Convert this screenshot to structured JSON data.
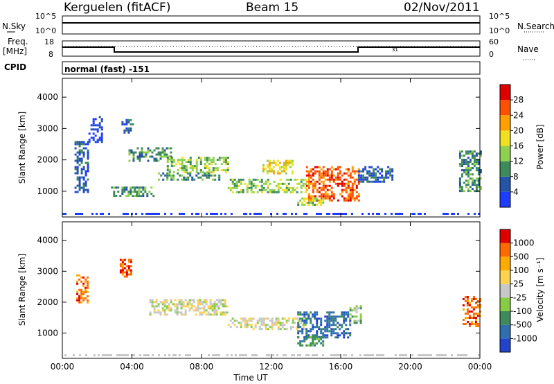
{
  "header": {
    "station": "Kerguelen (fitACF)",
    "beam": "Beam 15",
    "date": "02/Nov/2011"
  },
  "cpid_text": "normal (fast) -151",
  "status_panels": {
    "noise": {
      "left_label": "N.Sky",
      "right_label": "N.Search",
      "left_ticks": [
        "10^5",
        "10^0"
      ],
      "right_ticks": [
        "10^5",
        "10^0"
      ]
    },
    "freq": {
      "left_label_line1": "Freq.",
      "left_label_line2": "[MHz]",
      "right_label": "Nave",
      "left_ticks": [
        "18",
        "8"
      ],
      "right_ticks": [
        "60",
        "0"
      ],
      "tiny_mark": "31"
    },
    "cpid_label": "CPID"
  },
  "chart_data": [
    {
      "type": "heatmap",
      "panel": "power",
      "ylabel": "Slant Range [km]",
      "xlabel": "",
      "xlim_hours": [
        0,
        24
      ],
      "ylim_km": [
        180,
        4600
      ],
      "yticks": [
        "1000",
        "2000",
        "3000",
        "4000"
      ],
      "colorbar": {
        "label": "Power [dB]",
        "ticks": [
          "4",
          "8",
          "12",
          "16",
          "20",
          "24",
          "28"
        ],
        "colors": [
          "#1e3cff",
          "#2453a8",
          "#3d8a5a",
          "#8fd14f",
          "#f0e020",
          "#ffa000",
          "#ff5000",
          "#e00000"
        ]
      },
      "echo_regions": [
        {
          "t": [
            0.7,
            1.5
          ],
          "r": [
            1000,
            2600
          ],
          "level": 1
        },
        {
          "t": [
            1.5,
            2.3
          ],
          "r": [
            2600,
            3400
          ],
          "level": 0
        },
        {
          "t": [
            3.4,
            4.0
          ],
          "r": [
            2900,
            3300
          ],
          "level": 1
        },
        {
          "t": [
            3.8,
            6.2
          ],
          "r": [
            2000,
            2400
          ],
          "level": 2
        },
        {
          "t": [
            6.0,
            9.5
          ],
          "r": [
            1600,
            2100
          ],
          "level": 3
        },
        {
          "t": [
            2.8,
            5.3
          ],
          "r": [
            850,
            1150
          ],
          "level": 2
        },
        {
          "t": [
            5.5,
            9.0
          ],
          "r": [
            1350,
            1600
          ],
          "level": 2
        },
        {
          "t": [
            9.5,
            14.0
          ],
          "r": [
            1000,
            1400
          ],
          "level": 3
        },
        {
          "t": [
            11.5,
            13.2
          ],
          "r": [
            1600,
            2000
          ],
          "level": 4
        },
        {
          "t": [
            14.0,
            17.0
          ],
          "r": [
            700,
            1800
          ],
          "level": 6
        },
        {
          "t": [
            13.5,
            15.0
          ],
          "r": [
            600,
            800
          ],
          "level": 3
        },
        {
          "t": [
            17.0,
            19.0
          ],
          "r": [
            1300,
            1800
          ],
          "level": 1
        },
        {
          "t": [
            22.8,
            24.0
          ],
          "r": [
            1000,
            2300
          ],
          "level": 2
        }
      ]
    },
    {
      "type": "heatmap",
      "panel": "velocity",
      "ylabel": "Slant Range [km]",
      "xlabel": "Time UT",
      "xlim_hours": [
        0,
        24
      ],
      "ylim_km": [
        180,
        4600
      ],
      "yticks": [
        "1000",
        "2000",
        "3000",
        "4000"
      ],
      "xticks": [
        "00:00",
        "04:00",
        "08:00",
        "12:00",
        "16:00",
        "20:00",
        "00:00"
      ],
      "colorbar": {
        "label": "Velocity [m s⁻¹]",
        "ticks": [
          "1000",
          "500",
          "100",
          "25",
          "-25",
          "-100",
          "-500",
          "-1000"
        ],
        "colors": [
          "#2244cc",
          "#2f6fb0",
          "#3d8a5a",
          "#88cc44",
          "#c8c8c8",
          "#ffd24d",
          "#ffaa00",
          "#ff6a00",
          "#e00000"
        ]
      },
      "echo_regions": [
        {
          "t": [
            0.8,
            1.4
          ],
          "r": [
            2000,
            2900
          ],
          "level": 7
        },
        {
          "t": [
            3.3,
            4.0
          ],
          "r": [
            2800,
            3400
          ],
          "level": 7
        },
        {
          "t": [
            5.0,
            9.5
          ],
          "r": [
            1600,
            2100
          ],
          "level": 4
        },
        {
          "t": [
            9.5,
            14.0
          ],
          "r": [
            1100,
            1500
          ],
          "level": 4
        },
        {
          "t": [
            13.5,
            16.5
          ],
          "r": [
            850,
            1700
          ],
          "level": 1
        },
        {
          "t": [
            13.5,
            15.0
          ],
          "r": [
            600,
            900
          ],
          "level": 2
        },
        {
          "t": [
            16.5,
            17.2
          ],
          "r": [
            1300,
            1900
          ],
          "level": 3
        },
        {
          "t": [
            23.0,
            24.0
          ],
          "r": [
            1200,
            2200
          ],
          "level": 7
        }
      ]
    }
  ]
}
